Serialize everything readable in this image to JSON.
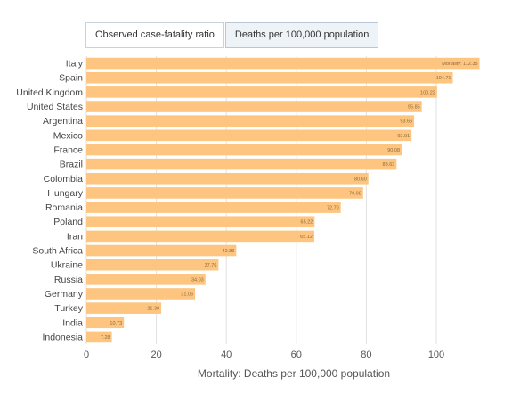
{
  "tabs": [
    {
      "label": "Observed case-fatality ratio",
      "active": false
    },
    {
      "label": "Deaths per 100,000 population",
      "active": true
    }
  ],
  "chart_data": {
    "type": "bar",
    "orientation": "horizontal",
    "categories": [
      "Italy",
      "Spain",
      "United Kingdom",
      "United States",
      "Argentina",
      "Mexico",
      "France",
      "Brazil",
      "Colombia",
      "Hungary",
      "Romania",
      "Poland",
      "Iran",
      "South Africa",
      "Ukraine",
      "Russia",
      "Germany",
      "Turkey",
      "India",
      "Indonesia"
    ],
    "values": [
      112.35,
      104.71,
      100.22,
      95.85,
      93.66,
      92.91,
      90.08,
      88.63,
      80.6,
      79.08,
      72.7,
      65.22,
      65.12,
      42.83,
      37.76,
      34.03,
      31.06,
      21.39,
      10.73,
      7.28
    ],
    "value_labels": [
      "Mortality: 112.35",
      "104.71",
      "100.22",
      "95.85",
      "93.66",
      "92.91",
      "90.08",
      "88.63",
      "80.60",
      "79.08",
      "72.70",
      "65.22",
      "65.12",
      "42.83",
      "37.76",
      "34.03",
      "31.06",
      "21.39",
      "10.73",
      "7.28"
    ],
    "xlabel": "Mortality: Deaths per 100,000 population",
    "xlim": [
      0,
      115
    ],
    "xticks": [
      0,
      20,
      40,
      60,
      80,
      100
    ],
    "grid": true,
    "bar_color": "#fdc57f",
    "grid_color": "#e2e2e2"
  }
}
